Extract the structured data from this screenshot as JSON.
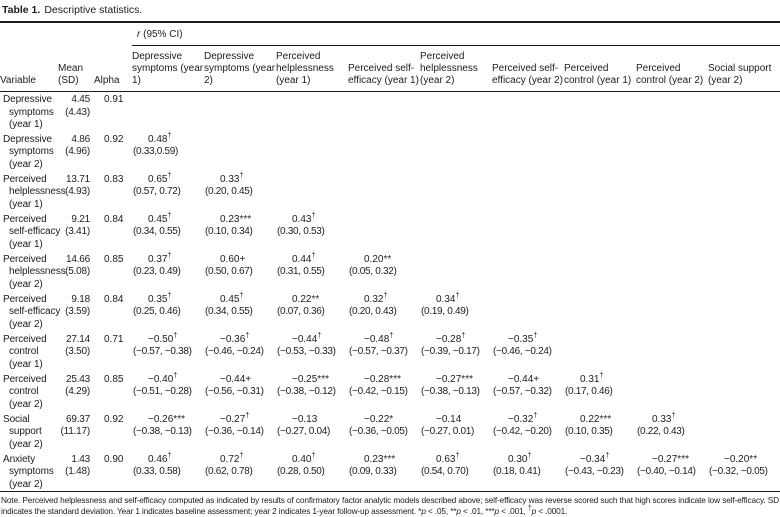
{
  "title": {
    "label": "Table 1.",
    "text": "Descriptive statistics."
  },
  "table": {
    "spanner_r": "r",
    "spanner_rest": " (95% CI)",
    "fixed_headers": [
      "Variable",
      "Mean (SD)",
      "Alpha"
    ],
    "r_headers": [
      "Depressive symptoms (year 1)",
      "Depressive symptoms (year 2)",
      "Perceived helplessness (year 1)",
      "Perceived self-efficacy (year 1)",
      "Perceived helplessness (year 2)",
      "Perceived self-efficacy (year 2)",
      "Perceived control (year 1)",
      "Perceived control (year 2)",
      "Social support (year 2)"
    ],
    "rows": [
      {
        "variable": "Depressive symptoms (year 1)",
        "mean": "4.45",
        "sd": "(4.43)",
        "alpha": "0.91",
        "r": []
      },
      {
        "variable": "Depressive symptoms (year 2)",
        "mean": "4.86",
        "sd": "(4.96)",
        "alpha": "0.92",
        "r": [
          {
            "v": "0.48",
            "sup": "†",
            "ci": "(0.33,0.59)"
          }
        ]
      },
      {
        "variable": "Perceived helplessness (year 1)",
        "mean": "13.71",
        "sd": "(4.93)",
        "alpha": "0.83",
        "r": [
          {
            "v": "0.65",
            "sup": "†",
            "ci": "(0.57, 0.72)"
          },
          {
            "v": "0.33",
            "sup": "†",
            "ci": "(0.20, 0.45)"
          }
        ]
      },
      {
        "variable": "Perceived self-efficacy (year 1)",
        "mean": "9.21",
        "sd": "(3.41)",
        "alpha": "0.84",
        "r": [
          {
            "v": "0.45",
            "sup": "†",
            "ci": "(0.34, 0.55)"
          },
          {
            "v": "0.23***",
            "sup": "",
            "ci": "(0.10, 0.34)"
          },
          {
            "v": "0.43",
            "sup": "†",
            "ci": "(0.30, 0.53)"
          }
        ]
      },
      {
        "variable": "Perceived helplessness (year 2)",
        "mean": "14.66",
        "sd": "(5.08)",
        "alpha": "0.85",
        "r": [
          {
            "v": "0.37",
            "sup": "†",
            "ci": "(0.23, 0.49)"
          },
          {
            "v": "0.60+",
            "sup": "",
            "ci": "(0.50, 0.67)"
          },
          {
            "v": "0.44",
            "sup": "†",
            "ci": "(0.31, 0.55)"
          },
          {
            "v": "0.20**",
            "sup": "",
            "ci": "(0.05, 0.32)"
          }
        ]
      },
      {
        "variable": "Perceived self-efficacy (year 2)",
        "mean": "9.18",
        "sd": "(3.59)",
        "alpha": "0.84",
        "r": [
          {
            "v": "0.35",
            "sup": "†",
            "ci": "(0.25, 0.46)"
          },
          {
            "v": "0.45",
            "sup": "†",
            "ci": "(0.34, 0.55)"
          },
          {
            "v": "0.22**",
            "sup": "",
            "ci": "(0.07, 0.36)"
          },
          {
            "v": "0.32",
            "sup": "†",
            "ci": "(0.20, 0.43)"
          },
          {
            "v": "0.34",
            "sup": "†",
            "ci": "(0.19, 0.49)"
          }
        ]
      },
      {
        "variable": "Perceived control (year 1)",
        "mean": "27.14",
        "sd": "(3.50)",
        "alpha": "0.71",
        "r": [
          {
            "v": "−0.50",
            "sup": "†",
            "ci": "(−0.57, −0.38)"
          },
          {
            "v": "−0.36",
            "sup": "†",
            "ci": "(−0.46, −0.24)"
          },
          {
            "v": "−0.44",
            "sup": "†",
            "ci": "(−0.53, −0.33)"
          },
          {
            "v": "−0.48",
            "sup": "†",
            "ci": "(−0.57, −0.37)"
          },
          {
            "v": "−0.28",
            "sup": "†",
            "ci": "(−0.39, −0.17)"
          },
          {
            "v": "−0.35",
            "sup": "†",
            "ci": "(−0.46, −0.24)"
          }
        ]
      },
      {
        "variable": "Perceived control (year 2)",
        "mean": "25.43",
        "sd": "(4.29)",
        "alpha": "0.85",
        "r": [
          {
            "v": "−0.40",
            "sup": "†",
            "ci": "(−0.51, −0.28)"
          },
          {
            "v": "−0.44+",
            "sup": "",
            "ci": "(−0.56, −0.31)"
          },
          {
            "v": "−0.25***",
            "sup": "",
            "ci": "(−0.38, −0.12)"
          },
          {
            "v": "−0.28***",
            "sup": "",
            "ci": "(−0.42, −0.15)"
          },
          {
            "v": "−0.27***",
            "sup": "",
            "ci": "(−0.38, −0.13)"
          },
          {
            "v": "−0.44+",
            "sup": "",
            "ci": "(−0.57, −0.32)"
          },
          {
            "v": "0.31",
            "sup": "†",
            "ci": "(0.17, 0.46)"
          }
        ]
      },
      {
        "variable": "Social support (year 2)",
        "mean": "69.37",
        "sd": "(11.17)",
        "alpha": "0.92",
        "r": [
          {
            "v": "−0.26***",
            "sup": "",
            "ci": "(−0.38, −0.13)"
          },
          {
            "v": "−0.27",
            "sup": "†",
            "ci": "(−0.36, −0.14)"
          },
          {
            "v": "−0.13",
            "sup": "",
            "ci": "(−0.27, 0.04)"
          },
          {
            "v": "−0.22*",
            "sup": "",
            "ci": "(−0.36, −0.05)"
          },
          {
            "v": "−0.14",
            "sup": "",
            "ci": "(−0.27, 0.01)"
          },
          {
            "v": "−0.32",
            "sup": "†",
            "ci": "(−0.42, −0.20)"
          },
          {
            "v": "0.22***",
            "sup": "",
            "ci": "(0.10, 0.35)"
          },
          {
            "v": "0.33",
            "sup": "†",
            "ci": "(0.22, 0.43)"
          }
        ]
      },
      {
        "variable": "Anxiety symptoms (year 2)",
        "mean": "1.43",
        "sd": "(1.48)",
        "alpha": "0.90",
        "r": [
          {
            "v": "0.46",
            "sup": "†",
            "ci": "(0.33, 0.58)"
          },
          {
            "v": "0.72",
            "sup": "†",
            "ci": "(0.62, 0.78)"
          },
          {
            "v": "0.40",
            "sup": "†",
            "ci": "(0.28, 0.50)"
          },
          {
            "v": "0.23***",
            "sup": "",
            "ci": "(0.09, 0.33)"
          },
          {
            "v": "0.63",
            "sup": "†",
            "ci": "(0.54, 0.70)"
          },
          {
            "v": "0.30",
            "sup": "†",
            "ci": "(0.18, 0.41)"
          },
          {
            "v": "−0.34",
            "sup": "†",
            "ci": "(−0.43, −0.23)"
          },
          {
            "v": "−0.27***",
            "sup": "",
            "ci": "(−0.40, −0.14)"
          },
          {
            "v": "−0.20**",
            "sup": "",
            "ci": "(−0.32, −0.05)"
          }
        ]
      }
    ]
  },
  "footnote": {
    "note": "Note. Perceived helplessness and self-efficacy computed as indicated by results of confirmatory factor analytic models described above; self-efficacy was reverse scored such that high scores indicate low self-efficacy. SD indicates the standard deviation. Year 1 indicates baseline assessment; year 2 indicates 1-year follow-up assessment.",
    "sig": [
      {
        "m": "*",
        "t": "p < .05"
      },
      {
        "m": "**",
        "t": "p < .01"
      },
      {
        "m": "***",
        "t": "p < .001"
      },
      {
        "m": "†",
        "t": "p < .0001"
      }
    ]
  }
}
